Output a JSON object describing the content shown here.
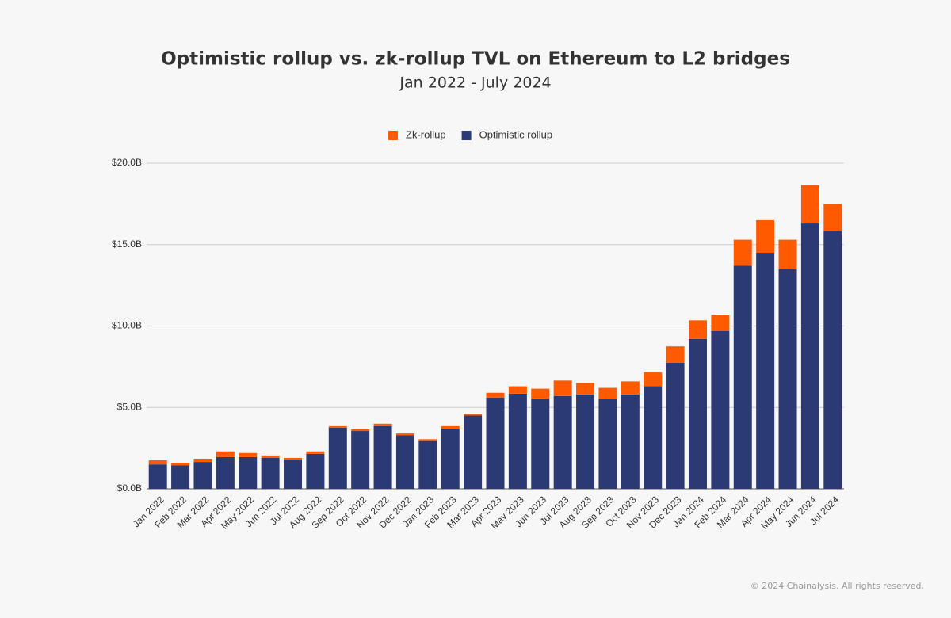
{
  "chart_data": {
    "type": "stacked-bar",
    "title": "Optimistic rollup vs. zk-rollup TVL on Ethereum to L2 bridges",
    "subtitle": "Jan 2022 - July 2024",
    "footer": "© 2024 Chainalysis. All rights reserved.",
    "categories": [
      "Jan 2022",
      "Feb 2022",
      "Mar 2022",
      "Apr 2022",
      "May 2022",
      "Jun 2022",
      "Jul 2022",
      "Aug 2022",
      "Sep 2022",
      "Oct 2022",
      "Nov 2022",
      "Dec 2022",
      "Jan 2023",
      "Feb 2023",
      "Mar 2023",
      "Apr 2023",
      "May 2023",
      "Jun 2023",
      "Jul 2023",
      "Aug 2023",
      "Sep 2023",
      "Oct 2023",
      "Nov 2023",
      "Dec 2023",
      "Jan 2024",
      "Feb 2024",
      "Mar 2024",
      "Apr 2024",
      "May 2024",
      "Jun 2024",
      "Jul 2024"
    ],
    "series": [
      {
        "name": "Zk-rollup",
        "color": "#ff5a00",
        "values": [
          0.25,
          0.15,
          0.2,
          0.35,
          0.25,
          0.15,
          0.1,
          0.15,
          0.1,
          0.1,
          0.15,
          0.1,
          0.1,
          0.15,
          0.1,
          0.3,
          0.45,
          0.6,
          0.95,
          0.7,
          0.7,
          0.8,
          0.85,
          1.0,
          1.15,
          1.0,
          1.6,
          2.0,
          1.8,
          2.35,
          1.65
        ]
      },
      {
        "name": "Optimistic rollup",
        "color": "#2b3a73",
        "values": [
          1.5,
          1.45,
          1.65,
          1.95,
          1.95,
          1.9,
          1.8,
          2.15,
          3.75,
          3.55,
          3.85,
          3.3,
          2.95,
          3.7,
          4.5,
          5.6,
          5.85,
          5.55,
          5.7,
          5.8,
          5.5,
          5.8,
          6.3,
          7.75,
          9.2,
          9.7,
          13.7,
          14.5,
          13.5,
          16.3,
          15.85
        ]
      }
    ],
    "ylim": [
      0,
      20
    ],
    "yticks": [
      {
        "value": 0,
        "label": "$0.0B"
      },
      {
        "value": 5,
        "label": "$5.0B"
      },
      {
        "value": 10,
        "label": "$10.0B"
      },
      {
        "value": 15,
        "label": "$15.0B"
      },
      {
        "value": 20,
        "label": "$20.0B"
      }
    ],
    "grid": true
  }
}
